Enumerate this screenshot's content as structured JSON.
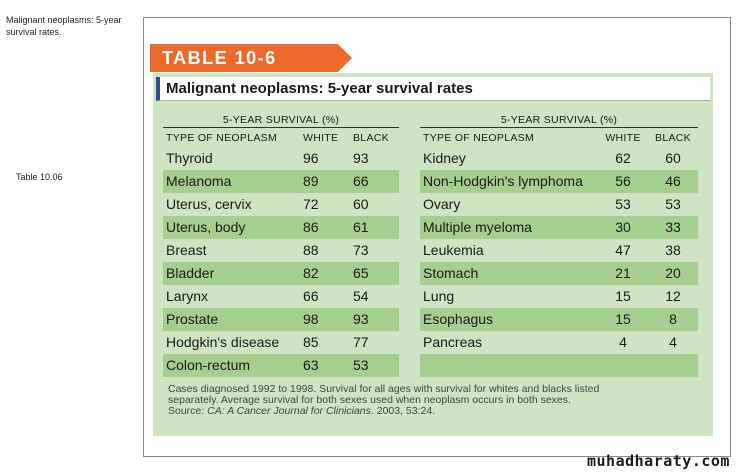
{
  "side": {
    "caption": "Malignant neoplasms: 5-year survival rates.",
    "label": "Table 10.06"
  },
  "table": {
    "badge": "TABLE 10-6",
    "title": "Malignant neoplasms: 5-year survival rates",
    "group_header": "5-YEAR SURVIVAL (%)",
    "col_type": "TYPE OF NEOPLASM",
    "col_white": "WHITE",
    "col_black": "BLACK",
    "left_rows": [
      {
        "name": "Thyroid",
        "white": "96",
        "black": "93"
      },
      {
        "name": "Melanoma",
        "white": "89",
        "black": "66"
      },
      {
        "name": "Uterus, cervix",
        "white": "72",
        "black": "60"
      },
      {
        "name": "Uterus, body",
        "white": "86",
        "black": "61"
      },
      {
        "name": "Breast",
        "white": "88",
        "black": "73"
      },
      {
        "name": "Bladder",
        "white": "82",
        "black": "65"
      },
      {
        "name": "Larynx",
        "white": "66",
        "black": "54"
      },
      {
        "name": "Prostate",
        "white": "98",
        "black": "93"
      },
      {
        "name": "Hodgkin's disease",
        "white": "85",
        "black": "77"
      },
      {
        "name": "Colon-rectum",
        "white": "63",
        "black": "53"
      }
    ],
    "right_rows": [
      {
        "name": "Kidney",
        "white": "62",
        "black": "60"
      },
      {
        "name": "Non-Hodgkin's lymphoma",
        "white": "56",
        "black": "46"
      },
      {
        "name": "Ovary",
        "white": "53",
        "black": "53"
      },
      {
        "name": "Multiple myeloma",
        "white": "30",
        "black": "33"
      },
      {
        "name": "Leukemia",
        "white": "47",
        "black": "38"
      },
      {
        "name": "Stomach",
        "white": "21",
        "black": "20"
      },
      {
        "name": "Lung",
        "white": "15",
        "black": "12"
      },
      {
        "name": "Esophagus",
        "white": "15",
        "black": "8"
      },
      {
        "name": "Pancreas",
        "white": "4",
        "black": "4"
      },
      {
        "name": "",
        "white": "",
        "black": ""
      }
    ],
    "footnote_line1": "Cases diagnosed 1992 to 1998. Survival for all ages with survival for whites and blacks listed",
    "footnote_line2": "separately. Average survival for both sexes used when neoplasm occurs in both sexes.",
    "source_prefix": "Source: ",
    "source_journal": "CA: A Cancer Journal for Clinicians",
    "source_suffix": ". 2003, 53:24."
  },
  "watermark": "muhadharaty.com",
  "colors": {
    "badge": "#ec6a2c",
    "panel": "#cfe4c2",
    "row_shade": "#a4cf8e",
    "title_accent": "#2d4d8a"
  }
}
